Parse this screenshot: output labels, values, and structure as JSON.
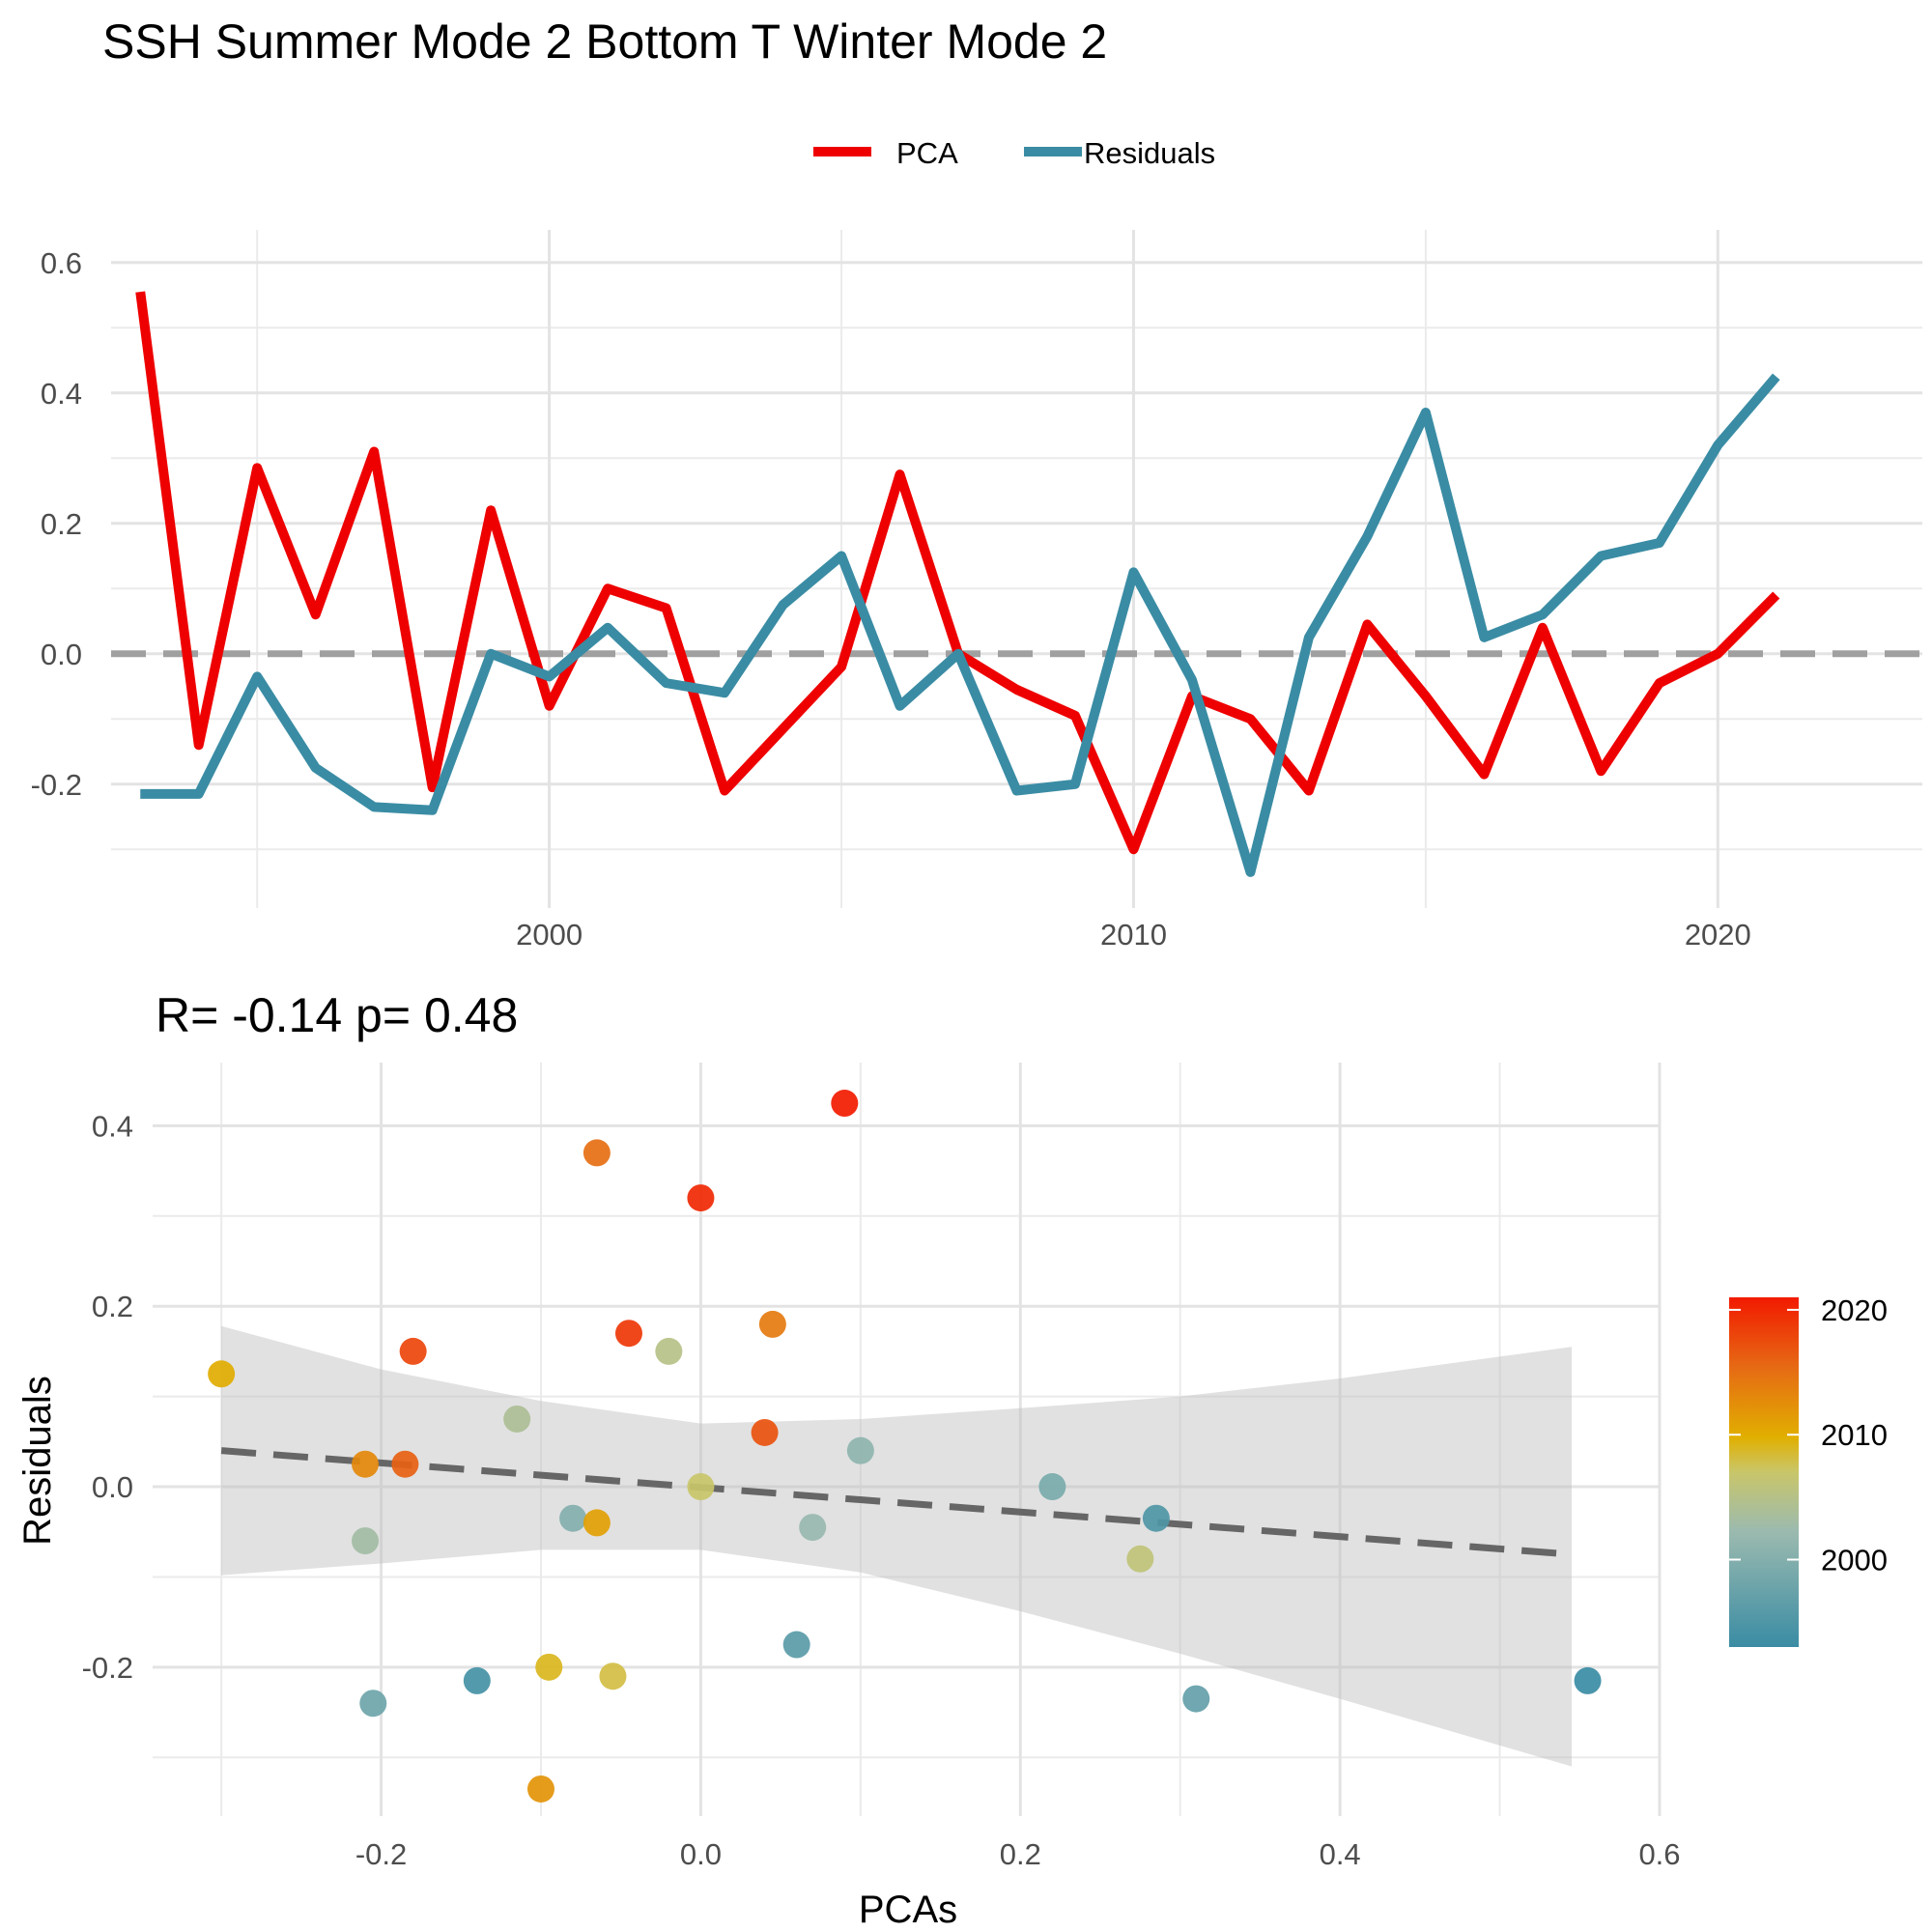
{
  "title": "SSH Summer Mode 2 Bottom T Winter Mode 2",
  "chart_data": [
    {
      "type": "line",
      "title": "",
      "xlabel": "",
      "ylabel": "",
      "x": [
        1993,
        1994,
        1995,
        1996,
        1997,
        1998,
        1999,
        2000,
        2001,
        2002,
        2003,
        2004,
        2005,
        2006,
        2007,
        2008,
        2009,
        2010,
        2011,
        2012,
        2013,
        2014,
        2015,
        2016,
        2017,
        2018,
        2019,
        2020,
        2021
      ],
      "series": [
        {
          "name": "PCA",
          "color": "#EE0000",
          "values": [
            0.555,
            -0.14,
            0.285,
            0.06,
            0.31,
            -0.205,
            0.22,
            -0.08,
            0.1,
            0.07,
            -0.21,
            -0.115,
            -0.02,
            0.275,
            0.0,
            -0.055,
            -0.095,
            -0.3,
            -0.065,
            -0.1,
            -0.21,
            0.045,
            -0.065,
            -0.185,
            0.04,
            -0.18,
            -0.045,
            0.0,
            0.09
          ]
        },
        {
          "name": "Residuals",
          "color": "#3A8CA4",
          "values": [
            -0.215,
            -0.215,
            -0.035,
            -0.175,
            -0.235,
            -0.24,
            0.0,
            -0.035,
            0.04,
            -0.045,
            -0.06,
            0.075,
            0.15,
            -0.08,
            0.0,
            -0.21,
            -0.2,
            0.125,
            -0.04,
            -0.335,
            0.025,
            0.18,
            0.37,
            0.025,
            0.06,
            0.15,
            0.17,
            0.32,
            0.425
          ]
        }
      ],
      "xticks": [
        "2000",
        "2010",
        "2020"
      ],
      "yticks": [
        "0.6",
        "0.4",
        "0.2",
        "0.0",
        "-0.2"
      ],
      "xlim": [
        1992.5,
        2023.5
      ],
      "ylim": [
        -0.39,
        0.65
      ],
      "reference_line": 0,
      "annotation": "R= -0.14  p= 0.48",
      "legend_position": "top"
    },
    {
      "type": "scatter",
      "title": "",
      "xlabel": "PCAs",
      "ylabel": "Residuals",
      "xticks": [
        "-0.2",
        "0.0",
        "0.2",
        "0.4",
        "0.6"
      ],
      "yticks": [
        "0.4",
        "0.2",
        "0.0",
        "-0.2"
      ],
      "xlim": [
        -0.343,
        0.6
      ],
      "ylim": [
        -0.365,
        0.47
      ],
      "colorbar": {
        "ticks": [
          "2020",
          "2010",
          "2000"
        ],
        "range": [
          1993,
          2021
        ]
      },
      "fit": {
        "x0": -0.3,
        "y0": 0.04,
        "x1": 0.545,
        "y1": -0.075
      },
      "ci_upper": [
        [
          -0.3,
          0.178
        ],
        [
          -0.2,
          0.13
        ],
        [
          -0.1,
          0.095
        ],
        [
          0.0,
          0.07
        ],
        [
          0.1,
          0.075
        ],
        [
          0.2,
          0.087
        ],
        [
          0.3,
          0.1
        ],
        [
          0.4,
          0.12
        ],
        [
          0.545,
          0.155
        ]
      ],
      "ci_lower": [
        [
          -0.3,
          -0.098
        ],
        [
          -0.2,
          -0.085
        ],
        [
          -0.1,
          -0.07
        ],
        [
          0.0,
          -0.07
        ],
        [
          0.1,
          -0.095
        ],
        [
          0.2,
          -0.138
        ],
        [
          0.3,
          -0.185
        ],
        [
          0.4,
          -0.235
        ],
        [
          0.545,
          -0.31
        ]
      ],
      "points": [
        {
          "x": 0.555,
          "y": -0.215,
          "year": 1993
        },
        {
          "x": -0.14,
          "y": -0.215,
          "year": 1994
        },
        {
          "x": 0.285,
          "y": -0.035,
          "year": 1995
        },
        {
          "x": 0.06,
          "y": -0.175,
          "year": 1996
        },
        {
          "x": 0.31,
          "y": -0.235,
          "year": 1997
        },
        {
          "x": -0.205,
          "y": -0.24,
          "year": 1998
        },
        {
          "x": 0.22,
          "y": 0.0,
          "year": 1999
        },
        {
          "x": -0.08,
          "y": -0.035,
          "year": 2000
        },
        {
          "x": 0.1,
          "y": 0.04,
          "year": 2001
        },
        {
          "x": 0.07,
          "y": -0.045,
          "year": 2002
        },
        {
          "x": -0.21,
          "y": -0.06,
          "year": 2003
        },
        {
          "x": -0.115,
          "y": 0.075,
          "year": 2004
        },
        {
          "x": -0.02,
          "y": 0.15,
          "year": 2005
        },
        {
          "x": 0.275,
          "y": -0.08,
          "year": 2006
        },
        {
          "x": 0.0,
          "y": 0.0,
          "year": 2007
        },
        {
          "x": -0.055,
          "y": -0.21,
          "year": 2008
        },
        {
          "x": -0.095,
          "y": -0.2,
          "year": 2009
        },
        {
          "x": -0.3,
          "y": 0.125,
          "year": 2010
        },
        {
          "x": -0.065,
          "y": -0.04,
          "year": 2011
        },
        {
          "x": -0.1,
          "y": -0.335,
          "year": 2012
        },
        {
          "x": -0.21,
          "y": 0.025,
          "year": 2013
        },
        {
          "x": 0.045,
          "y": 0.18,
          "year": 2014
        },
        {
          "x": -0.065,
          "y": 0.37,
          "year": 2015
        },
        {
          "x": -0.185,
          "y": 0.025,
          "year": 2016
        },
        {
          "x": 0.04,
          "y": 0.06,
          "year": 2017
        },
        {
          "x": -0.18,
          "y": 0.15,
          "year": 2018
        },
        {
          "x": -0.045,
          "y": 0.17,
          "year": 2019
        },
        {
          "x": 0.0,
          "y": 0.32,
          "year": 2020
        },
        {
          "x": 0.09,
          "y": 0.425,
          "year": 2021
        }
      ]
    }
  ]
}
